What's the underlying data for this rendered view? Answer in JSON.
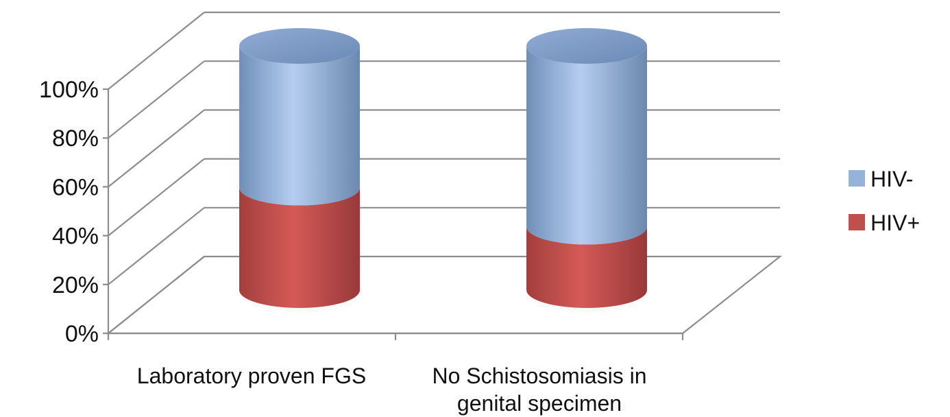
{
  "chart_data": {
    "type": "bar",
    "stacked": "percent",
    "style": "3d-cylinder",
    "categories": [
      "Laboratory proven FGS",
      "No Schistosomiasis in genital specimen"
    ],
    "series": [
      {
        "name": "HIV+",
        "values": [
          42,
          26
        ],
        "color": "#c0504d"
      },
      {
        "name": "HIV-",
        "values": [
          58,
          74
        ],
        "color": "#8eb4e3"
      }
    ],
    "y_ticks": [
      "0%",
      "20%",
      "40%",
      "60%",
      "80%",
      "100%"
    ],
    "ylim": [
      0,
      100
    ],
    "grid": true,
    "legend_position": "right"
  },
  "legend": {
    "items": [
      {
        "label": "HIV-",
        "color": "#95b3d7"
      },
      {
        "label": "HIV+",
        "color": "#c0504d"
      }
    ]
  }
}
